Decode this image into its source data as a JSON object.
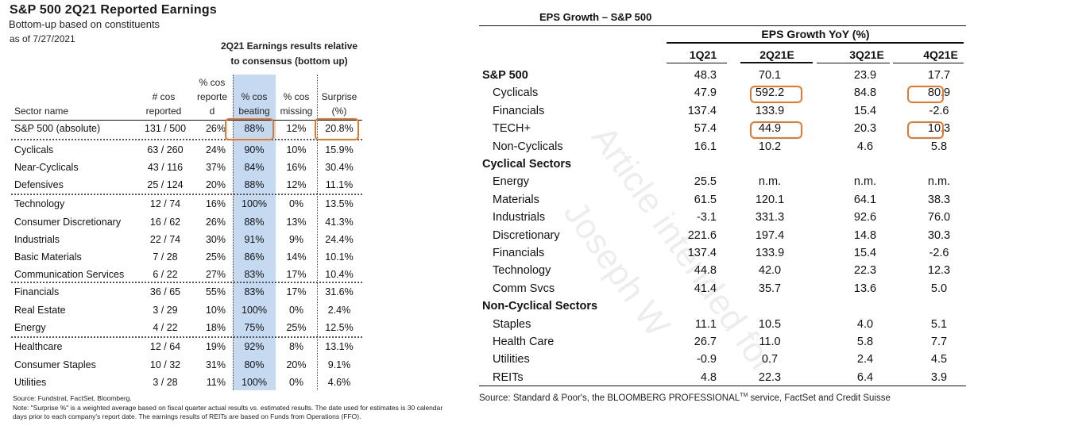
{
  "left_table": {
    "title": "S&P 500 2Q21 Reported Earnings",
    "subtitle": "Bottom-up based on constituents",
    "as_of": "as of 7/27/2021",
    "group_header_line1": "2Q21 Earnings results relative",
    "group_header_line2": "to consensus (bottom up)",
    "columns": {
      "sector": "Sector name",
      "reported_l1": "# cos",
      "reported_l2": "reported",
      "pct_reported_l1": "% cos",
      "pct_reported_l2": "reporte",
      "pct_reported_l3": "d",
      "beating_l1": "% cos",
      "beating_l2": "beating",
      "missing_l1": "% cos",
      "missing_l2": "missing",
      "surprise_l1": "Surprise",
      "surprise_l2": "(%)"
    },
    "rows": [
      {
        "sector": "S&P 500 (absolute)",
        "reported": "131 / 500",
        "pct_reported": "26%",
        "beating": "88%",
        "missing": "12%",
        "surprise": "20.8%"
      },
      {
        "sector": "Cyclicals",
        "reported": "63 / 260",
        "pct_reported": "24%",
        "beating": "90%",
        "missing": "10%",
        "surprise": "15.9%"
      },
      {
        "sector": "Near-Cyclicals",
        "reported": "43 / 116",
        "pct_reported": "37%",
        "beating": "84%",
        "missing": "16%",
        "surprise": "30.4%"
      },
      {
        "sector": "Defensives",
        "reported": "25 / 124",
        "pct_reported": "20%",
        "beating": "88%",
        "missing": "12%",
        "surprise": "11.1%"
      },
      {
        "sector": "Technology",
        "reported": "12 / 74",
        "pct_reported": "16%",
        "beating": "100%",
        "missing": "0%",
        "surprise": "13.5%"
      },
      {
        "sector": "Consumer Discretionary",
        "reported": "16 / 62",
        "pct_reported": "26%",
        "beating": "88%",
        "missing": "13%",
        "surprise": "41.3%"
      },
      {
        "sector": "Industrials",
        "reported": "22 / 74",
        "pct_reported": "30%",
        "beating": "91%",
        "missing": "9%",
        "surprise": "24.4%"
      },
      {
        "sector": "Basic Materials",
        "reported": "7 / 28",
        "pct_reported": "25%",
        "beating": "86%",
        "missing": "14%",
        "surprise": "10.1%"
      },
      {
        "sector": "Communication Services",
        "reported": "6 / 22",
        "pct_reported": "27%",
        "beating": "83%",
        "missing": "17%",
        "surprise": "10.4%"
      },
      {
        "sector": "Financials",
        "reported": "36 / 65",
        "pct_reported": "55%",
        "beating": "83%",
        "missing": "17%",
        "surprise": "31.6%"
      },
      {
        "sector": "Real Estate",
        "reported": "3 / 29",
        "pct_reported": "10%",
        "beating": "100%",
        "missing": "0%",
        "surprise": "2.4%"
      },
      {
        "sector": "Energy",
        "reported": "4 / 22",
        "pct_reported": "18%",
        "beating": "75%",
        "missing": "25%",
        "surprise": "12.5%"
      },
      {
        "sector": "Healthcare",
        "reported": "12 / 64",
        "pct_reported": "19%",
        "beating": "92%",
        "missing": "8%",
        "surprise": "13.1%"
      },
      {
        "sector": "Consumer Staples",
        "reported": "10 / 32",
        "pct_reported": "31%",
        "beating": "80%",
        "missing": "20%",
        "surprise": "9.1%"
      },
      {
        "sector": "Utilities",
        "reported": "3 / 28",
        "pct_reported": "11%",
        "beating": "100%",
        "missing": "0%",
        "surprise": "4.6%"
      }
    ],
    "source": "Source: Fundstrat, FactSet, Bloomberg.",
    "note_line1": "Note: \"Surprise %\" is a weighted average based on fiscal quarter actual results vs. estimated results.  The date used for estimates is 30 calendar",
    "note_line2": "days prior to each company's report date. The earnings results of REITs are based on Funds from Operations (FFO).",
    "highlight_color": "#e8772e",
    "beating_column_color": "#c5d9f1"
  },
  "right_table": {
    "title": "EPS Growth – S&P 500",
    "group_header": "EPS Growth YoY (%)",
    "columns": [
      "1Q21",
      "2Q21E",
      "3Q21E",
      "4Q21E"
    ],
    "rows": [
      {
        "type": "section",
        "name": "S&P 500",
        "values": [
          "48.3",
          "70.1",
          "23.9",
          "17.7"
        ]
      },
      {
        "type": "item",
        "name": "Cyclicals",
        "values": [
          "47.9",
          "592.2",
          "84.8",
          "80.9"
        ],
        "highlighted": [
          false,
          true,
          true,
          true
        ]
      },
      {
        "type": "item",
        "name": "Financials",
        "values": [
          "137.4",
          "133.9",
          "15.4",
          "-2.6"
        ]
      },
      {
        "type": "item",
        "name": "TECH+",
        "values": [
          "57.4",
          "44.9",
          "20.3",
          "10.3"
        ],
        "highlighted": [
          false,
          true,
          true,
          true
        ]
      },
      {
        "type": "item",
        "name": "Non-Cyclicals",
        "values": [
          "16.1",
          "10.2",
          "4.6",
          "5.8"
        ]
      },
      {
        "type": "section",
        "name": "Cyclical Sectors",
        "values": [
          "",
          "",
          "",
          ""
        ]
      },
      {
        "type": "item",
        "name": "Energy",
        "values": [
          "25.5",
          "n.m.",
          "n.m.",
          "n.m."
        ]
      },
      {
        "type": "item",
        "name": "Materials",
        "values": [
          "61.5",
          "120.1",
          "64.1",
          "38.3"
        ]
      },
      {
        "type": "item",
        "name": "Industrials",
        "values": [
          "-3.1",
          "331.3",
          "92.6",
          "76.0"
        ]
      },
      {
        "type": "item",
        "name": "Discretionary",
        "values": [
          "221.6",
          "197.4",
          "14.8",
          "30.3"
        ]
      },
      {
        "type": "item",
        "name": "Financials",
        "values": [
          "137.4",
          "133.9",
          "15.4",
          "-2.6"
        ]
      },
      {
        "type": "item",
        "name": "Technology",
        "values": [
          "44.8",
          "42.0",
          "22.3",
          "12.3"
        ]
      },
      {
        "type": "item",
        "name": "Comm Svcs",
        "values": [
          "41.4",
          "35.7",
          "13.6",
          "5.0"
        ]
      },
      {
        "type": "section",
        "name": "Non-Cyclical Sectors",
        "values": [
          "",
          "",
          "",
          ""
        ]
      },
      {
        "type": "item",
        "name": "Staples",
        "values": [
          "11.1",
          "10.5",
          "4.0",
          "5.1"
        ]
      },
      {
        "type": "item",
        "name": "Health Care",
        "values": [
          "26.7",
          "11.0",
          "5.8",
          "7.7"
        ]
      },
      {
        "type": "item",
        "name": "Utilities",
        "values": [
          "-0.9",
          "0.7",
          "2.4",
          "4.5"
        ]
      },
      {
        "type": "item",
        "name": "REITs",
        "values": [
          "4.8",
          "22.3",
          "6.4",
          "3.9"
        ]
      }
    ],
    "source_prefix": "Source: Standard & Poor's, the BLOOMBERG PROFESSIONAL",
    "source_tm": "TM",
    "source_suffix": " service, FactSet and Credit Suisse",
    "watermark_line1": "Article intended for",
    "watermark_line2": "Joseph W"
  }
}
